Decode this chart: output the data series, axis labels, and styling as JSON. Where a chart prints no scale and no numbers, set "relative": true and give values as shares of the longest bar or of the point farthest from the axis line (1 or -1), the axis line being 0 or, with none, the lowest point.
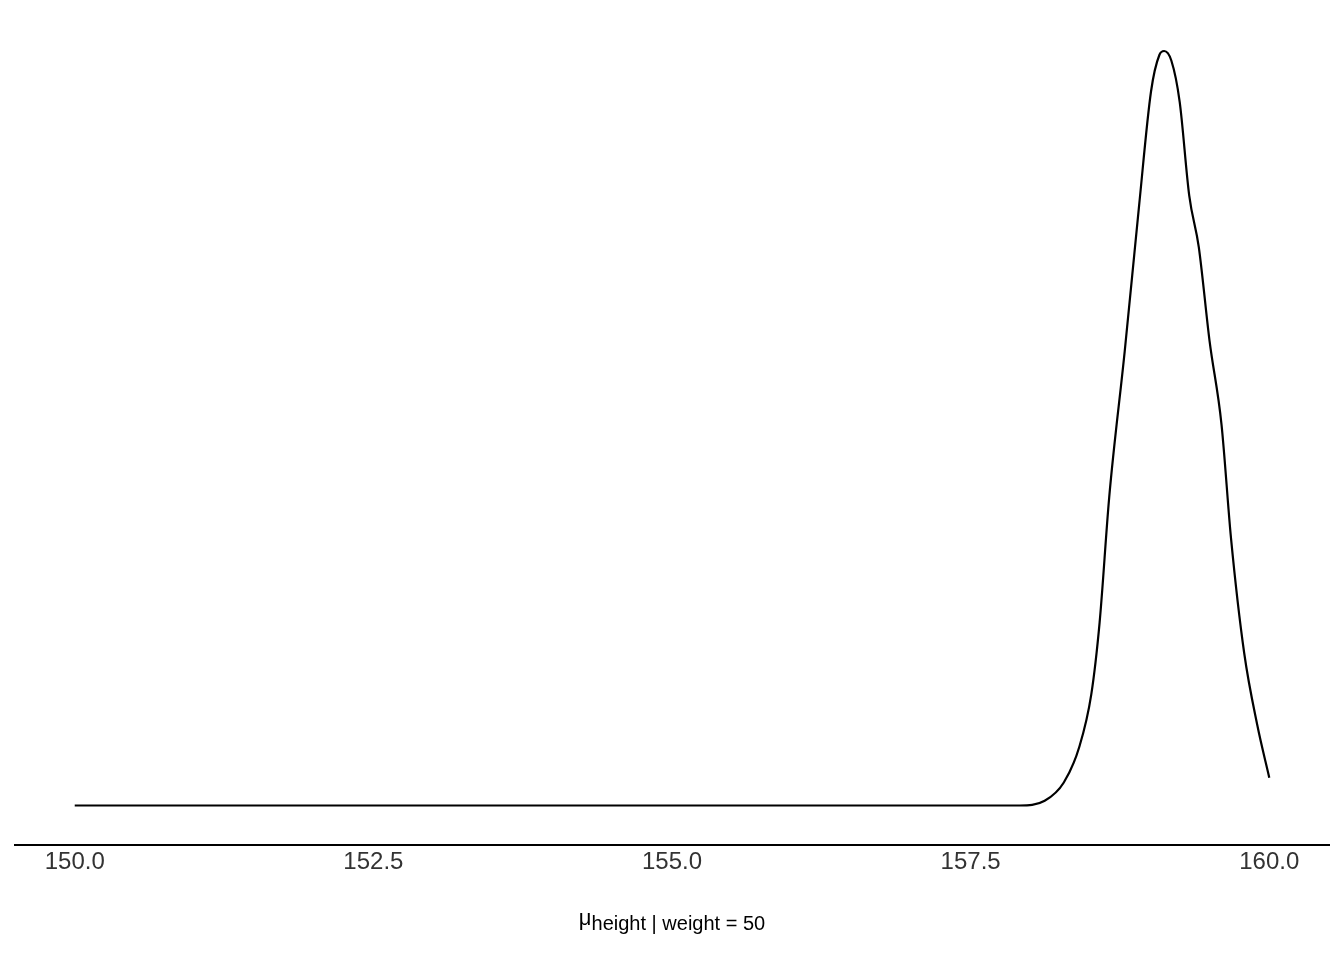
{
  "chart_data": {
    "type": "line",
    "relative": true,
    "xlabel": "μ$_{height | weight = 50}$",
    "xlim": [
      149.5,
      160.5
    ],
    "xticks": [
      {
        "value": 150,
        "label": "150.0"
      },
      {
        "value": 152.5,
        "label": "152.5"
      },
      {
        "value": 155,
        "label": "155.0"
      },
      {
        "value": 157.5,
        "label": "157.5"
      },
      {
        "value": 160,
        "label": "160.0"
      }
    ],
    "grid": false,
    "legend": false,
    "marker": "none",
    "line_style": "solid",
    "series": [
      {
        "color": "#000000",
        "x": [
          150.0,
          157.91,
          158.12,
          158.28,
          158.41,
          158.51,
          158.58,
          158.66,
          158.79,
          158.91,
          159.01,
          159.08,
          159.12,
          159.18,
          159.25,
          159.33,
          159.41,
          159.5,
          159.6,
          159.68,
          159.79,
          159.9,
          160.0
        ],
        "values": [
          0.05,
          0.05,
          0.056,
          0.079,
          0.124,
          0.19,
          0.281,
          0.438,
          0.622,
          0.805,
          0.949,
          0.995,
          1,
          0.988,
          0.936,
          0.818,
          0.753,
          0.635,
          0.53,
          0.386,
          0.242,
          0.151,
          0.085
        ]
      }
    ]
  }
}
